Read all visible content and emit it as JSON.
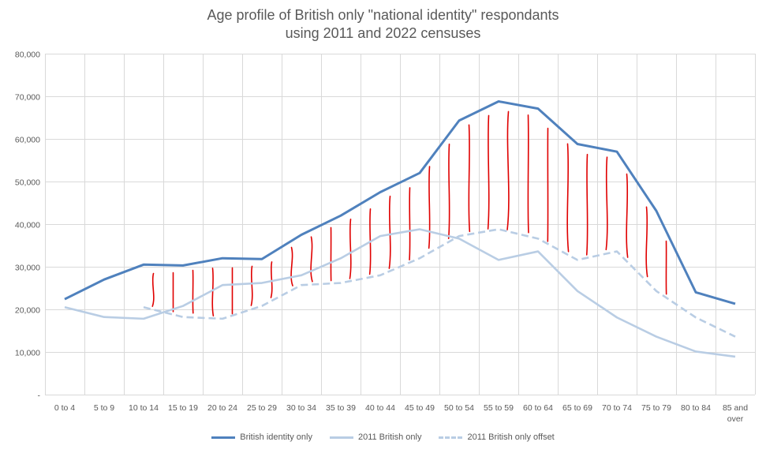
{
  "chart_data": {
    "type": "line",
    "title_line1": "Age profile of British only \"national identity\" respondants",
    "title_line2": "using 2011 and 2022 censuses",
    "categories": [
      "0 to  4",
      "5 to 9",
      "10 to 14",
      "15 to 19",
      "20 to 24",
      "25 to 29",
      "30 to 34",
      "35 to 39",
      "40 to 44",
      "45 to 49",
      "50 to 54",
      "55 to 59",
      "60 to 64",
      "65 to 69",
      "70 to 74",
      "75 to 79",
      "80 to 84",
      "85 and over"
    ],
    "y_tick_labels": [
      "-",
      "10,000",
      "20,000",
      "30,000",
      "40,000",
      "50,000",
      "60,000",
      "70,000",
      "80,000"
    ],
    "ylim": [
      0,
      80000
    ],
    "grid": "horizontal",
    "legend_position": "bottom",
    "series": [
      {
        "name": "British identity only",
        "color": "#4f81bd",
        "style": "solid",
        "values": [
          22400,
          27000,
          30500,
          30300,
          32000,
          31800,
          37500,
          42000,
          47500,
          52000,
          64300,
          68800,
          67100,
          58800,
          57000,
          43100,
          24000,
          21300
        ]
      },
      {
        "name": "2011 British only",
        "color": "#b9cde4",
        "style": "solid",
        "values": [
          20500,
          18200,
          17800,
          20800,
          25700,
          26200,
          28000,
          32000,
          37200,
          38800,
          36600,
          31600,
          33600,
          24300,
          18100,
          13600,
          10100,
          8900
        ]
      },
      {
        "name": "2011 British only offset",
        "color": "#b9cde4",
        "style": "dashed",
        "values": [
          null,
          null,
          20500,
          18200,
          17800,
          20800,
          25700,
          26200,
          28000,
          32000,
          37200,
          38800,
          36600,
          31600,
          33600,
          24300,
          18100,
          13600
        ]
      }
    ],
    "annotation": "red hand-drawn vertical lines between the British identity only line and the 2011 British only offset line",
    "annotation_color": "#e00000"
  }
}
